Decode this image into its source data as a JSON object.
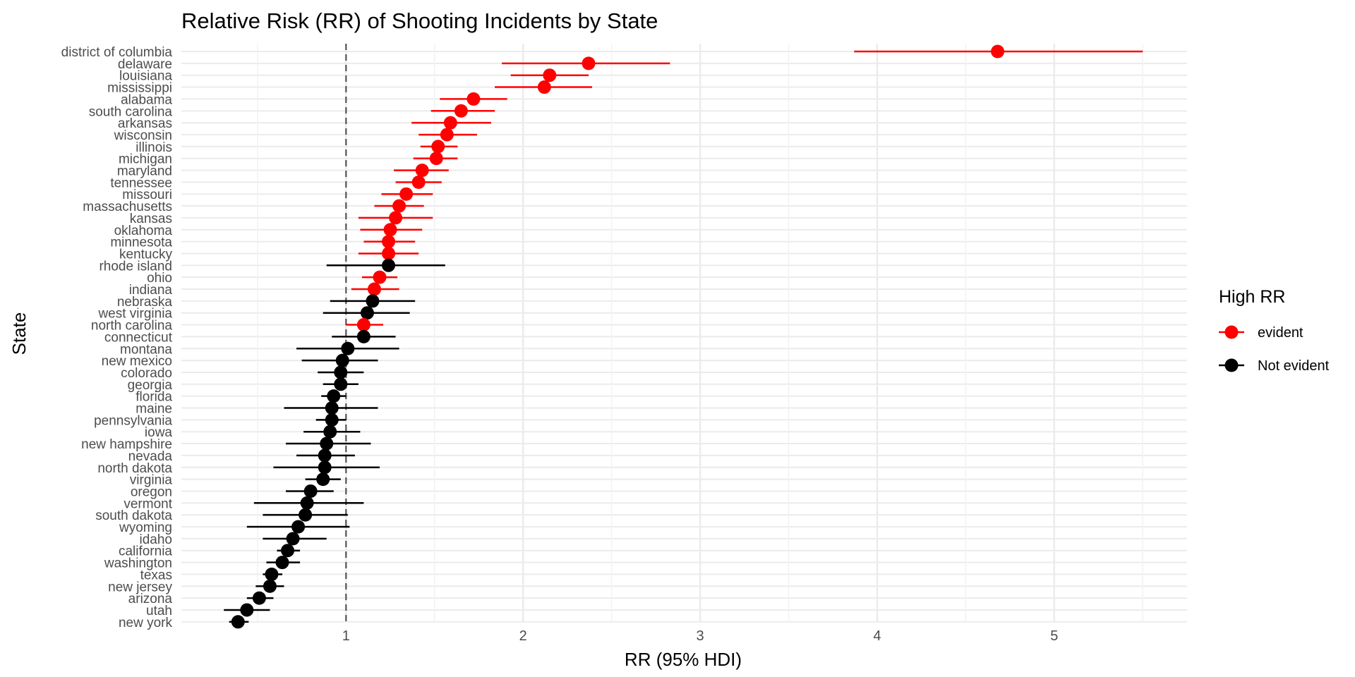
{
  "chart_data": {
    "type": "scatter",
    "title": "Relative Risk (RR) of Shooting Incidents by State",
    "xlabel": "RR (95% HDI)",
    "ylabel": "State",
    "xlim": [
      0.07,
      5.75
    ],
    "x_ticks": [
      1,
      2,
      3,
      4,
      5
    ],
    "x_minor_ticks": [
      0.5,
      1.5,
      2.5,
      3.5,
      4.5,
      5.5
    ],
    "reference_line": 1,
    "grid": true,
    "legend": {
      "title": "High RR",
      "position": "right",
      "entries": [
        {
          "label": "evident",
          "color": "#ff0000"
        },
        {
          "label": "Not evident",
          "color": "#000000"
        }
      ]
    },
    "points": [
      {
        "state": "district of columbia",
        "rr": 4.68,
        "lo": 3.87,
        "hi": 5.5,
        "group": "evident"
      },
      {
        "state": "delaware",
        "rr": 2.37,
        "lo": 1.88,
        "hi": 2.83,
        "group": "evident"
      },
      {
        "state": "louisiana",
        "rr": 2.15,
        "lo": 1.93,
        "hi": 2.37,
        "group": "evident"
      },
      {
        "state": "mississippi",
        "rr": 2.12,
        "lo": 1.84,
        "hi": 2.39,
        "group": "evident"
      },
      {
        "state": "alabama",
        "rr": 1.72,
        "lo": 1.53,
        "hi": 1.91,
        "group": "evident"
      },
      {
        "state": "south carolina",
        "rr": 1.65,
        "lo": 1.48,
        "hi": 1.84,
        "group": "evident"
      },
      {
        "state": "arkansas",
        "rr": 1.59,
        "lo": 1.37,
        "hi": 1.82,
        "group": "evident"
      },
      {
        "state": "wisconsin",
        "rr": 1.57,
        "lo": 1.41,
        "hi": 1.74,
        "group": "evident"
      },
      {
        "state": "illinois",
        "rr": 1.52,
        "lo": 1.42,
        "hi": 1.63,
        "group": "evident"
      },
      {
        "state": "michigan",
        "rr": 1.51,
        "lo": 1.38,
        "hi": 1.63,
        "group": "evident"
      },
      {
        "state": "maryland",
        "rr": 1.43,
        "lo": 1.27,
        "hi": 1.58,
        "group": "evident"
      },
      {
        "state": "tennessee",
        "rr": 1.41,
        "lo": 1.28,
        "hi": 1.54,
        "group": "evident"
      },
      {
        "state": "missouri",
        "rr": 1.34,
        "lo": 1.2,
        "hi": 1.49,
        "group": "evident"
      },
      {
        "state": "massachusetts",
        "rr": 1.3,
        "lo": 1.16,
        "hi": 1.44,
        "group": "evident"
      },
      {
        "state": "kansas",
        "rr": 1.28,
        "lo": 1.07,
        "hi": 1.49,
        "group": "evident"
      },
      {
        "state": "oklahoma",
        "rr": 1.25,
        "lo": 1.08,
        "hi": 1.43,
        "group": "evident"
      },
      {
        "state": "minnesota",
        "rr": 1.24,
        "lo": 1.1,
        "hi": 1.39,
        "group": "evident"
      },
      {
        "state": "kentucky",
        "rr": 1.24,
        "lo": 1.07,
        "hi": 1.41,
        "group": "evident"
      },
      {
        "state": "rhode island",
        "rr": 1.24,
        "lo": 0.89,
        "hi": 1.56,
        "group": "Not evident"
      },
      {
        "state": "ohio",
        "rr": 1.19,
        "lo": 1.09,
        "hi": 1.29,
        "group": "evident"
      },
      {
        "state": "indiana",
        "rr": 1.16,
        "lo": 1.03,
        "hi": 1.3,
        "group": "evident"
      },
      {
        "state": "nebraska",
        "rr": 1.15,
        "lo": 0.91,
        "hi": 1.39,
        "group": "Not evident"
      },
      {
        "state": "west virginia",
        "rr": 1.12,
        "lo": 0.87,
        "hi": 1.36,
        "group": "Not evident"
      },
      {
        "state": "north carolina",
        "rr": 1.1,
        "lo": 1.0,
        "hi": 1.21,
        "group": "evident"
      },
      {
        "state": "connecticut",
        "rr": 1.1,
        "lo": 0.92,
        "hi": 1.28,
        "group": "Not evident"
      },
      {
        "state": "montana",
        "rr": 1.01,
        "lo": 0.72,
        "hi": 1.3,
        "group": "Not evident"
      },
      {
        "state": "new mexico",
        "rr": 0.98,
        "lo": 0.75,
        "hi": 1.18,
        "group": "Not evident"
      },
      {
        "state": "colorado",
        "rr": 0.97,
        "lo": 0.84,
        "hi": 1.1,
        "group": "Not evident"
      },
      {
        "state": "georgia",
        "rr": 0.97,
        "lo": 0.87,
        "hi": 1.07,
        "group": "Not evident"
      },
      {
        "state": "florida",
        "rr": 0.93,
        "lo": 0.86,
        "hi": 1.0,
        "group": "Not evident"
      },
      {
        "state": "maine",
        "rr": 0.92,
        "lo": 0.65,
        "hi": 1.18,
        "group": "Not evident"
      },
      {
        "state": "pennsylvania",
        "rr": 0.92,
        "lo": 0.83,
        "hi": 1.0,
        "group": "Not evident"
      },
      {
        "state": "iowa",
        "rr": 0.91,
        "lo": 0.76,
        "hi": 1.08,
        "group": "Not evident"
      },
      {
        "state": "new hampshire",
        "rr": 0.89,
        "lo": 0.66,
        "hi": 1.14,
        "group": "Not evident"
      },
      {
        "state": "nevada",
        "rr": 0.88,
        "lo": 0.72,
        "hi": 1.05,
        "group": "Not evident"
      },
      {
        "state": "north dakota",
        "rr": 0.88,
        "lo": 0.59,
        "hi": 1.19,
        "group": "Not evident"
      },
      {
        "state": "virginia",
        "rr": 0.87,
        "lo": 0.77,
        "hi": 0.97,
        "group": "Not evident"
      },
      {
        "state": "oregon",
        "rr": 0.8,
        "lo": 0.66,
        "hi": 0.93,
        "group": "Not evident"
      },
      {
        "state": "vermont",
        "rr": 0.78,
        "lo": 0.48,
        "hi": 1.1,
        "group": "Not evident"
      },
      {
        "state": "south dakota",
        "rr": 0.77,
        "lo": 0.53,
        "hi": 1.01,
        "group": "Not evident"
      },
      {
        "state": "wyoming",
        "rr": 0.73,
        "lo": 0.44,
        "hi": 1.02,
        "group": "Not evident"
      },
      {
        "state": "idaho",
        "rr": 0.7,
        "lo": 0.53,
        "hi": 0.89,
        "group": "Not evident"
      },
      {
        "state": "california",
        "rr": 0.67,
        "lo": 0.61,
        "hi": 0.74,
        "group": "Not evident"
      },
      {
        "state": "washington",
        "rr": 0.64,
        "lo": 0.55,
        "hi": 0.74,
        "group": "Not evident"
      },
      {
        "state": "texas",
        "rr": 0.58,
        "lo": 0.53,
        "hi": 0.64,
        "group": "Not evident"
      },
      {
        "state": "new jersey",
        "rr": 0.57,
        "lo": 0.49,
        "hi": 0.65,
        "group": "Not evident"
      },
      {
        "state": "arizona",
        "rr": 0.51,
        "lo": 0.44,
        "hi": 0.59,
        "group": "Not evident"
      },
      {
        "state": "utah",
        "rr": 0.44,
        "lo": 0.31,
        "hi": 0.57,
        "group": "Not evident"
      },
      {
        "state": "new york",
        "rr": 0.39,
        "lo": 0.34,
        "hi": 0.45,
        "group": "Not evident"
      }
    ]
  }
}
